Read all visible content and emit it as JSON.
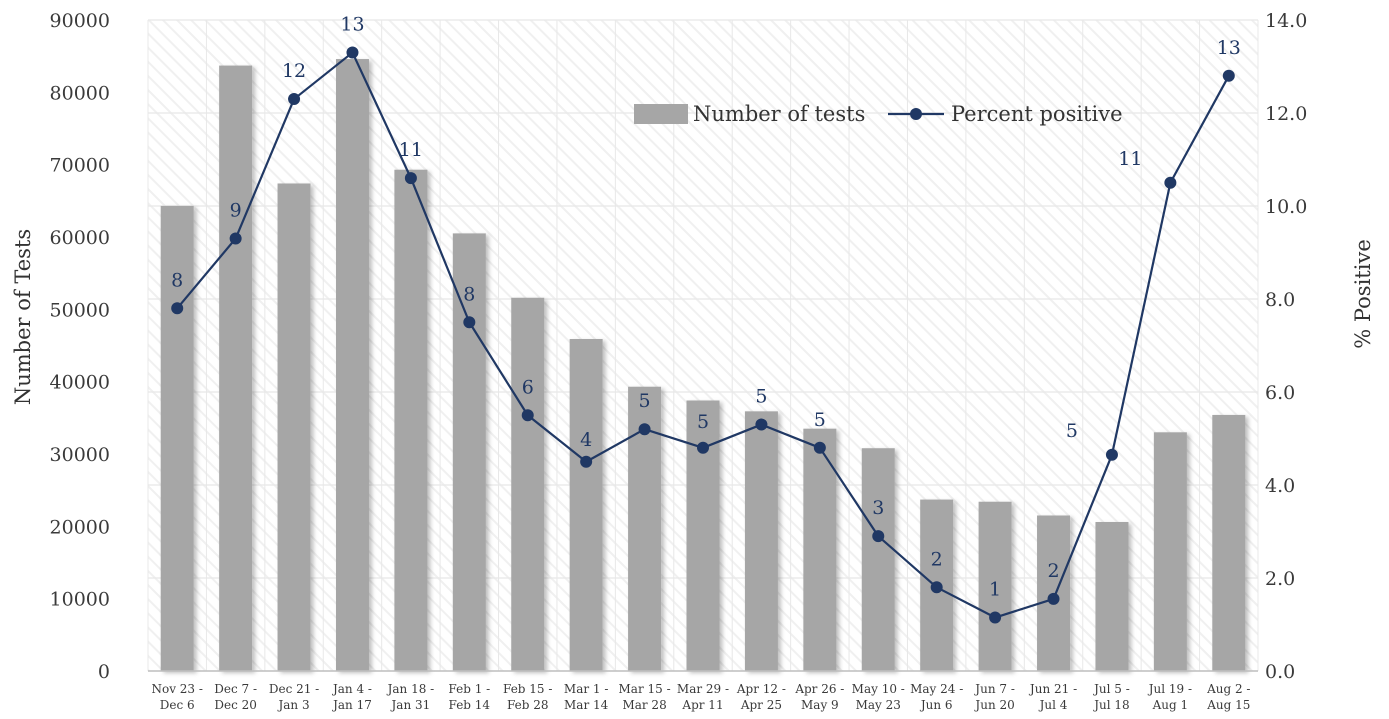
{
  "chart_data": {
    "type": "bar",
    "categories": [
      [
        "Nov 23 -",
        "Dec 6"
      ],
      [
        "Dec 7 -",
        "Dec 20"
      ],
      [
        "Dec 21 -",
        "Jan 3"
      ],
      [
        "Jan 4 -",
        "Jan 17"
      ],
      [
        "Jan 18 -",
        "Jan 31"
      ],
      [
        "Feb 1 -",
        "Feb 14"
      ],
      [
        "Feb 15 -",
        "Feb 28"
      ],
      [
        "Mar 1 -",
        "Mar 14"
      ],
      [
        "Mar 15 -",
        "Mar 28"
      ],
      [
        "Mar 29 -",
        "Apr 11"
      ],
      [
        "Apr 12 -",
        "Apr 25"
      ],
      [
        "Apr 26 -",
        "May 9"
      ],
      [
        "May 10 -",
        "May 23"
      ],
      [
        "May 24 -",
        "Jun 6"
      ],
      [
        "Jun 7 -",
        "Jun 20"
      ],
      [
        "Jun 21 -",
        "Jul 4"
      ],
      [
        "Jul 5 -",
        "Jul 18"
      ],
      [
        "Jul 19 -",
        "Aug 1"
      ],
      [
        "Aug 2 -",
        "Aug 15"
      ]
    ],
    "series": [
      {
        "name": "Number of tests",
        "type": "bar",
        "axis": "left",
        "values": [
          64300,
          83700,
          67400,
          84600,
          69300,
          60500,
          51600,
          45900,
          39300,
          37400,
          35900,
          33500,
          30800,
          23700,
          23400,
          21500,
          20600,
          33000,
          35400
        ]
      },
      {
        "name": "Percent positive",
        "type": "line",
        "axis": "right",
        "values": [
          7.8,
          9.3,
          12.3,
          13.3,
          10.6,
          7.5,
          5.5,
          4.5,
          5.2,
          4.8,
          5.3,
          4.8,
          2.9,
          1.8,
          1.15,
          1.55,
          4.65,
          10.5,
          12.8
        ],
        "labels": [
          "8",
          "9",
          "12",
          "13",
          "11",
          "8",
          "6",
          "4",
          "5",
          "5",
          "5",
          "5",
          "3",
          "2",
          "1",
          "2",
          "5",
          "11",
          "13"
        ]
      }
    ],
    "y_left": {
      "label": "Number of Tests",
      "ylim": [
        0,
        90000
      ],
      "ticks": [
        "0",
        "10000",
        "20000",
        "30000",
        "40000",
        "50000",
        "60000",
        "70000",
        "80000",
        "90000"
      ]
    },
    "y_right": {
      "label": "% Positive",
      "ylim": [
        0,
        14
      ],
      "ticks": [
        "0.0",
        "2.0",
        "4.0",
        "6.0",
        "8.0",
        "10.0",
        "12.0",
        "14.0"
      ]
    },
    "grid": true,
    "legend": "top-right",
    "colors": {
      "bar": "#a6a6a6",
      "line": "#203864",
      "grid": "#e8e8e8",
      "hatch": "#f0f0f0"
    }
  }
}
